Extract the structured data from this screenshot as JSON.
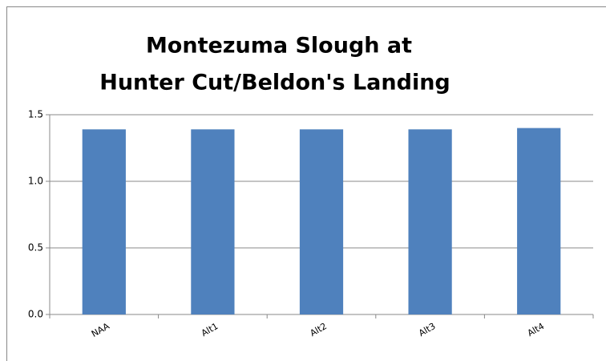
{
  "chart_data": {
    "type": "bar",
    "title": [
      "Montezuma Slough at",
      "Hunter Cut/Beldon's Landing"
    ],
    "categories": [
      "NAA",
      "Alt1",
      "Alt2",
      "Alt3",
      "Alt4"
    ],
    "values": [
      1.39,
      1.39,
      1.39,
      1.39,
      1.4
    ],
    "color": "#4f81bd",
    "ylim": [
      0,
      1.5
    ],
    "yticks": [
      {
        "value": 0,
        "label": "0.0"
      },
      {
        "value": 0.5,
        "label": "0.5"
      },
      {
        "value": 1,
        "label": "1.0"
      },
      {
        "value": 1.5,
        "label": "1.5"
      }
    ],
    "grid": true
  }
}
